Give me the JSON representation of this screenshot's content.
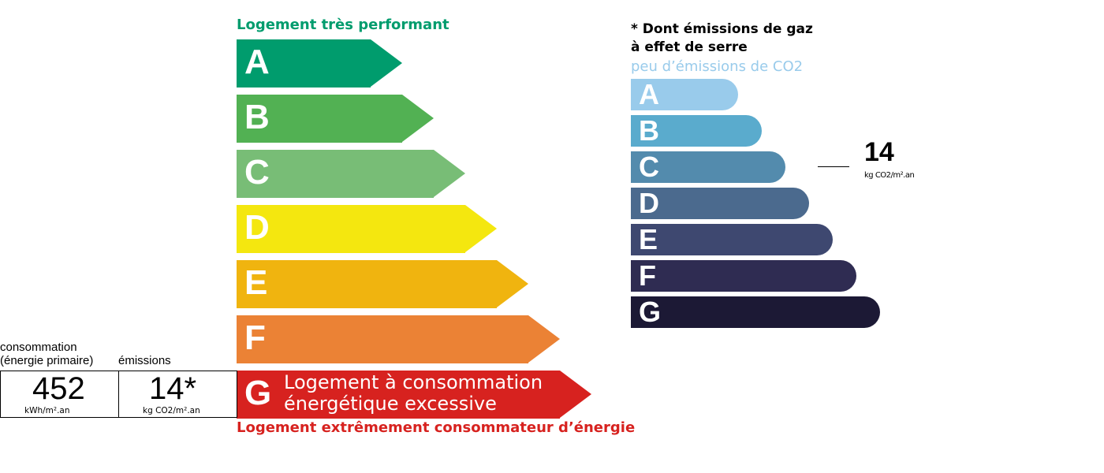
{
  "energy": {
    "top_label": "Logement très performant",
    "bottom_label": "Logement extrêmement consommateur d’énergie",
    "g_text_line1": "Logement à consommation",
    "g_text_line2": "énergétique excessive",
    "classes": [
      {
        "letter": "A",
        "color": "#009c6d"
      },
      {
        "letter": "B",
        "color": "#52b153"
      },
      {
        "letter": "C",
        "color": "#78bd76"
      },
      {
        "letter": "D",
        "color": "#f4e70f"
      },
      {
        "letter": "E",
        "color": "#f0b40f"
      },
      {
        "letter": "F",
        "color": "#eb8235"
      },
      {
        "letter": "G",
        "color": "#d7221f"
      }
    ],
    "active_class": "G"
  },
  "summary": {
    "consumption_label_line1": "consommation",
    "consumption_label_line2": "(énergie primaire)",
    "emissions_label": "émissions",
    "consumption_value": "452",
    "consumption_unit": "kWh/m².an",
    "emissions_value": "14*",
    "emissions_unit": "kg CO2/m².an"
  },
  "ghg": {
    "note_line1": "* Dont émissions de gaz",
    "note_line2": "à effet de serre",
    "top_label": "peu d’émissions de CO2",
    "classes": [
      {
        "letter": "A",
        "color": "#99cbeb"
      },
      {
        "letter": "B",
        "color": "#5aabcd"
      },
      {
        "letter": "C",
        "color": "#538bad"
      },
      {
        "letter": "D",
        "color": "#4b6a8e"
      },
      {
        "letter": "E",
        "color": "#3e4870"
      },
      {
        "letter": "F",
        "color": "#2f2c52"
      },
      {
        "letter": "G",
        "color": "#1c1935"
      }
    ],
    "active_class": "C",
    "value": "14",
    "unit": "kg CO2/m².an"
  }
}
